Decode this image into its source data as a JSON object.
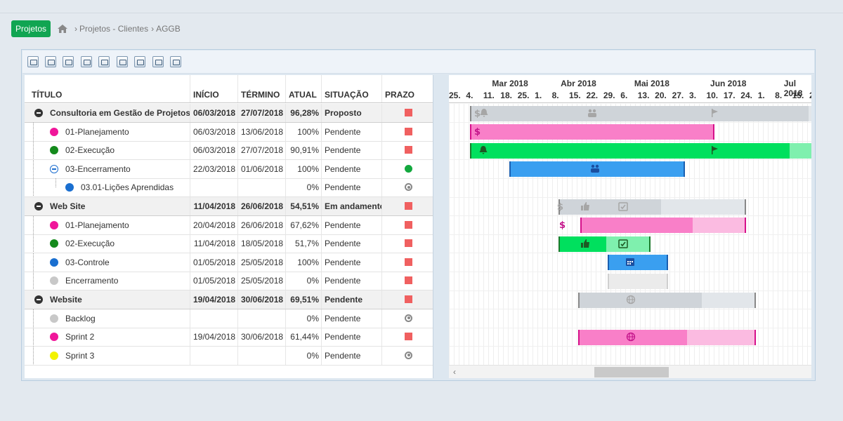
{
  "breadcrumb": {
    "root_button": "Projetos",
    "home_icon": "home-icon",
    "items": [
      "Projetos - Clientes",
      "AGGB"
    ]
  },
  "toolbar": {
    "buttons": [
      "refresh-icon",
      "print-icon",
      "folder-open-icon",
      "folder-icon",
      "zoom-in-icon",
      "zoom-out-icon",
      "zoom-fit-icon",
      "calendar-icon",
      "columns-icon"
    ]
  },
  "grid": {
    "columns": {
      "title": "TÍTULO",
      "start": "INÍCIO",
      "end": "TÉRMINO",
      "actual": "ATUAL",
      "status": "SITUAÇÃO",
      "deadline": "PRAZO"
    },
    "rows": [
      {
        "title": "Consultoria em Gestão de Projetos",
        "start": "06/03/2018",
        "end": "27/07/2018",
        "actual": "96,28%",
        "status": "Proposto",
        "deadline": "late",
        "level": 0,
        "group": true
      },
      {
        "title": "01-Planejamento",
        "start": "06/03/2018",
        "end": "13/06/2018",
        "actual": "100%",
        "status": "Pendente",
        "deadline": "late",
        "level": 1,
        "dot": "#f0169a"
      },
      {
        "title": "02-Execução",
        "start": "06/03/2018",
        "end": "27/07/2018",
        "actual": "90,91%",
        "status": "Pendente",
        "deadline": "late",
        "level": 1,
        "dot": "#148a1c"
      },
      {
        "title": "03-Encerramento",
        "start": "22/03/2018",
        "end": "01/06/2018",
        "actual": "100%",
        "status": "Pendente",
        "deadline": "ok",
        "level": 1,
        "expanded": true
      },
      {
        "title": "03.01-Lições Aprendidas",
        "start": "",
        "end": "",
        "actual": "0%",
        "status": "Pendente",
        "deadline": "none",
        "level": 2,
        "dot": "#1a6fd0"
      },
      {
        "title": "Web Site",
        "start": "11/04/2018",
        "end": "26/06/2018",
        "actual": "54,51%",
        "status": "Em andamento",
        "deadline": "late",
        "level": 0,
        "group": true
      },
      {
        "title": "01-Planejamento",
        "start": "20/04/2018",
        "end": "26/06/2018",
        "actual": "67,62%",
        "status": "Pendente",
        "deadline": "late",
        "level": 1,
        "dot": "#f0169a"
      },
      {
        "title": "02-Execução",
        "start": "11/04/2018",
        "end": "18/05/2018",
        "actual": "51,7%",
        "status": "Pendente",
        "deadline": "late",
        "level": 1,
        "dot": "#148a1c"
      },
      {
        "title": "03-Controle",
        "start": "01/05/2018",
        "end": "25/05/2018",
        "actual": "100%",
        "status": "Pendente",
        "deadline": "late",
        "level": 1,
        "dot": "#1a6fd0"
      },
      {
        "title": "Encerramento",
        "start": "01/05/2018",
        "end": "25/05/2018",
        "actual": "0%",
        "status": "Pendente",
        "deadline": "late",
        "level": 1,
        "dot": "#c8c8c8"
      },
      {
        "title": "Website",
        "start": "19/04/2018",
        "end": "30/06/2018",
        "actual": "69,51%",
        "status": "Pendente",
        "deadline": "late",
        "level": 0,
        "group": true
      },
      {
        "title": "Backlog",
        "start": "",
        "end": "",
        "actual": "0%",
        "status": "Pendente",
        "deadline": "none",
        "level": 1,
        "dot": "#c8c8c8"
      },
      {
        "title": "Sprint 2",
        "start": "19/04/2018",
        "end": "30/06/2018",
        "actual": "61,44%",
        "status": "Pendente",
        "deadline": "late",
        "level": 1,
        "dot": "#f0169a"
      },
      {
        "title": "Sprint 3",
        "start": "",
        "end": "",
        "actual": "0%",
        "status": "Pendente",
        "deadline": "none",
        "level": 1,
        "dot": "#f2f200"
      }
    ]
  },
  "gantt": {
    "months": [
      "Mar 2018",
      "Abr 2018",
      "Mai 2018",
      "Jun 2018",
      "Jul 2018"
    ],
    "days": [
      "25.",
      "4.",
      "11.",
      "18.",
      "25.",
      "1.",
      "8.",
      "15.",
      "22.",
      "29.",
      "6.",
      "13.",
      "20.",
      "27.",
      "3.",
      "10.",
      "17.",
      "24.",
      "1.",
      "8.",
      "15.",
      "22.",
      "29.",
      "5"
    ],
    "colors": {
      "group": "#cfd4d9",
      "group_light": "#e2e6ea",
      "pink": "#f97fc8",
      "pink_light": "#fbbbe1",
      "green": "#00e05e",
      "green_light": "#7ff0ae",
      "blue": "#3a9ff0",
      "grey_bar": "#ebebeb",
      "deadline_red": "#f06060",
      "deadline_green": "#13a83e"
    }
  }
}
